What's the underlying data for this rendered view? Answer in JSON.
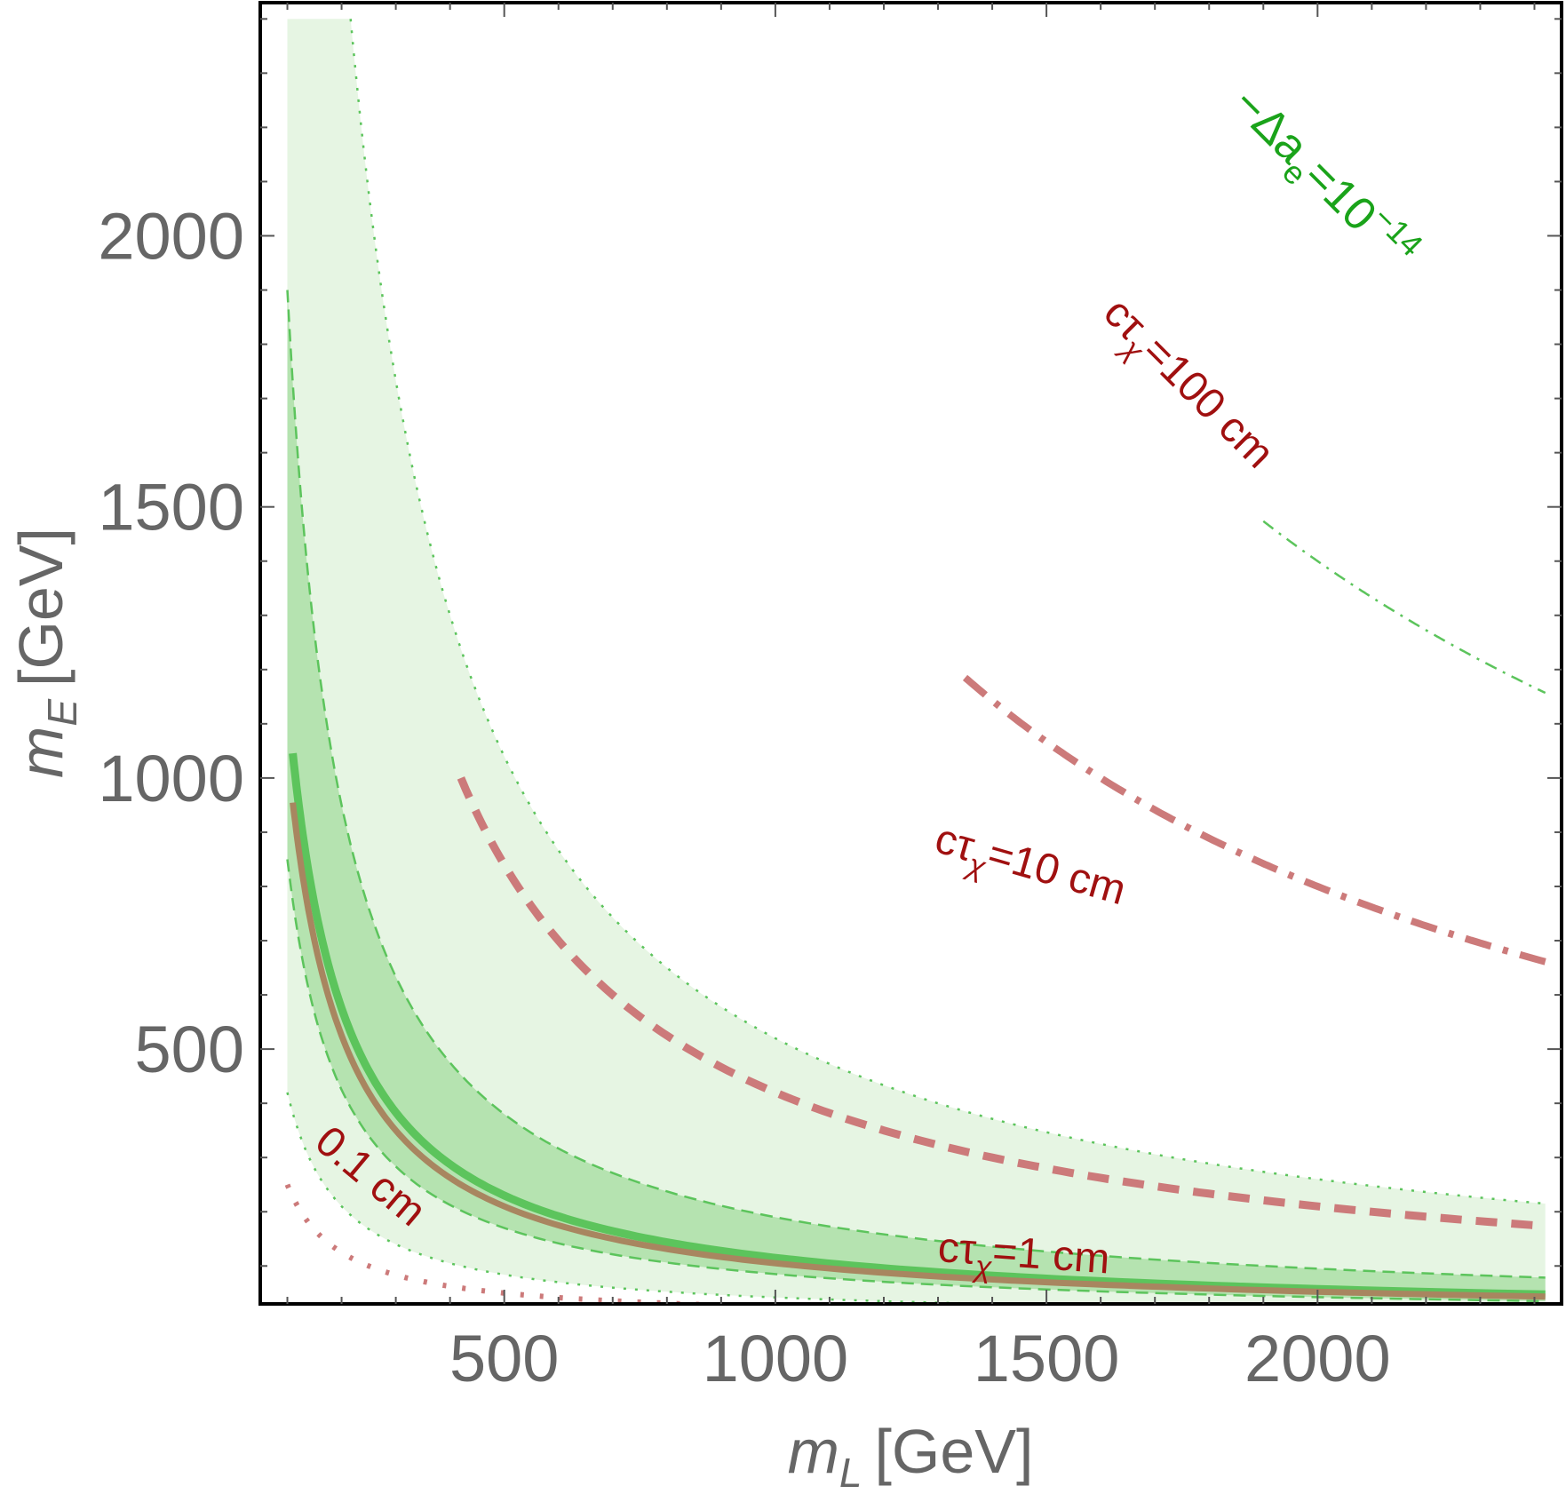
{
  "chart_data": {
    "type": "line",
    "xlabel_var": "m",
    "xlabel_sub": "L",
    "xlabel_unit": "[GeV]",
    "ylabel_var": "m",
    "ylabel_sub": "E",
    "ylabel_unit": "[GeV]",
    "xlim": [
      50,
      2450
    ],
    "ylim": [
      30,
      2430
    ],
    "xticks": [
      500,
      1000,
      1500,
      2000
    ],
    "yticks": [
      500,
      1000,
      1500,
      2000
    ],
    "xtick_labels": [
      "500",
      "1000",
      "1500",
      "2000"
    ],
    "ytick_labels": [
      "500",
      "1000",
      "1500",
      "2000"
    ],
    "grid": false,
    "colors": {
      "band_outer": "#e6f5e3",
      "band_inner": "#b5e3b0",
      "band_edge": "#5cc45c",
      "central_green": "#5cc45c",
      "central_brown": "#a88660",
      "ctau": "#cc7a7a",
      "label_red": "#a01010",
      "label_green": "#1aa31a"
    },
    "bands": {
      "outer": {
        "k_low": 0.042,
        "k_high": 0.52,
        "xmin": 100,
        "xmax": 2420
      },
      "inner": {
        "k_low": 0.085,
        "k_high": 0.19,
        "xmin": 100,
        "xmax": 2420
      }
    },
    "series": [
      {
        "style": "central-green",
        "k": 0.115
      },
      {
        "style": "central-brown",
        "k": 0.105
      },
      {
        "style": "dotted",
        "k": 0.025,
        "xmin": 100,
        "xmax": 1070
      },
      {
        "style": "dashed",
        "k": 0.42,
        "xmin": 420,
        "xmax": 2420
      },
      {
        "style": "dashdot",
        "k": 1.6,
        "xmin": 1350,
        "xmax": 2420
      },
      {
        "style": "thin-green-dashdot",
        "k": 2.8,
        "xmin": 1900,
        "xmax": 2420
      }
    ],
    "annotations": {
      "ctau_1cm": {
        "pre": "cτ",
        "sub": "χ",
        "post": "=1 cm"
      },
      "ctau_10cm": {
        "pre": "cτ",
        "sub": "χ",
        "post": "=10 cm"
      },
      "ctau_100cm": {
        "pre": "cτ",
        "sub": "χ",
        "post": "=100 cm"
      },
      "ctau_01cm": {
        "text": "0.1 cm"
      },
      "delta_ae": {
        "pre": "−Δa",
        "sub": "e",
        "mid": "=10",
        "sup": "−14"
      }
    }
  }
}
